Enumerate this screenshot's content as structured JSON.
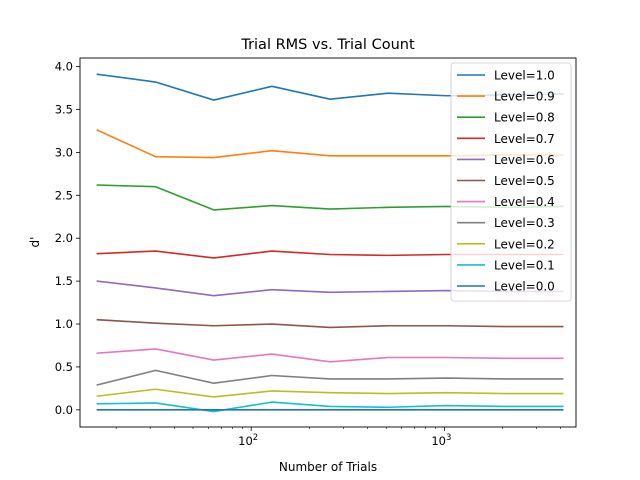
{
  "chart_data": {
    "type": "line",
    "title": "Trial RMS vs. Trial Count",
    "xlabel": "Number of Trials",
    "ylabel": "d'",
    "xscale": "log",
    "xlim": [
      13,
      4800
    ],
    "ylim": [
      -0.2,
      4.1
    ],
    "grid": false,
    "legend_position": "top-right",
    "x": [
      16,
      32,
      64,
      128,
      256,
      512,
      1024,
      2048,
      4096
    ],
    "xticks": [
      {
        "value": 100,
        "base": "10",
        "exp": "2"
      },
      {
        "value": 1000,
        "base": "10",
        "exp": "3"
      }
    ],
    "yticks": [
      {
        "value": 0.0,
        "label": "0.0"
      },
      {
        "value": 0.5,
        "label": "0.5"
      },
      {
        "value": 1.0,
        "label": "1.0"
      },
      {
        "value": 1.5,
        "label": "1.5"
      },
      {
        "value": 2.0,
        "label": "2.0"
      },
      {
        "value": 2.5,
        "label": "2.5"
      },
      {
        "value": 3.0,
        "label": "3.0"
      },
      {
        "value": 3.5,
        "label": "3.5"
      },
      {
        "value": 4.0,
        "label": "4.0"
      }
    ],
    "series": [
      {
        "name": "Level=1.0",
        "color": "#1f77b4",
        "values": [
          3.91,
          3.82,
          3.61,
          3.77,
          3.62,
          3.69,
          3.66,
          3.67,
          3.68
        ]
      },
      {
        "name": "Level=0.9",
        "color": "#ff7f0e",
        "values": [
          3.26,
          2.95,
          2.94,
          3.02,
          2.96,
          2.96,
          2.96,
          2.97,
          2.97
        ]
      },
      {
        "name": "Level=0.8",
        "color": "#2ca02c",
        "values": [
          2.62,
          2.6,
          2.33,
          2.38,
          2.34,
          2.36,
          2.37,
          2.36,
          2.37
        ]
      },
      {
        "name": "Level=0.7",
        "color": "#d62728",
        "values": [
          1.82,
          1.85,
          1.77,
          1.85,
          1.81,
          1.8,
          1.81,
          1.81,
          1.81
        ]
      },
      {
        "name": "Level=0.6",
        "color": "#9467bd",
        "values": [
          1.5,
          1.42,
          1.33,
          1.4,
          1.37,
          1.38,
          1.39,
          1.38,
          1.38
        ]
      },
      {
        "name": "Level=0.5",
        "color": "#8c564b",
        "values": [
          1.05,
          1.01,
          0.98,
          1.0,
          0.96,
          0.98,
          0.98,
          0.97,
          0.97
        ]
      },
      {
        "name": "Level=0.4",
        "color": "#e377c2",
        "values": [
          0.66,
          0.71,
          0.58,
          0.65,
          0.56,
          0.61,
          0.61,
          0.6,
          0.6
        ]
      },
      {
        "name": "Level=0.3",
        "color": "#7f7f7f",
        "values": [
          0.29,
          0.46,
          0.31,
          0.4,
          0.36,
          0.36,
          0.37,
          0.36,
          0.36
        ]
      },
      {
        "name": "Level=0.2",
        "color": "#bcbd22",
        "values": [
          0.16,
          0.24,
          0.15,
          0.22,
          0.2,
          0.19,
          0.2,
          0.19,
          0.19
        ]
      },
      {
        "name": "Level=0.1",
        "color": "#17becf",
        "values": [
          0.07,
          0.08,
          -0.02,
          0.09,
          0.04,
          0.03,
          0.05,
          0.04,
          0.04
        ]
      },
      {
        "name": "Level=0.0",
        "color": "#1f77b4",
        "values": [
          0.0,
          0.0,
          0.0,
          0.0,
          0.0,
          0.0,
          0.0,
          0.0,
          0.0
        ]
      }
    ]
  }
}
